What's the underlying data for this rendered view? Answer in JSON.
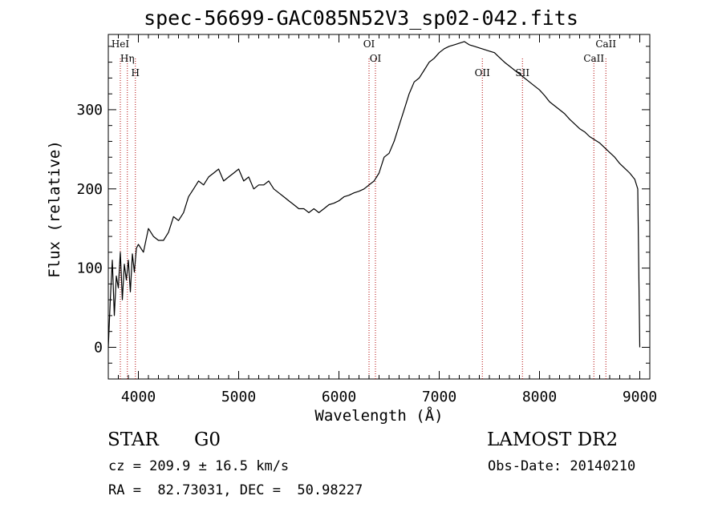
{
  "chart_data": {
    "type": "line",
    "title": "spec-56699-GAC085N52V3_sp02-042.fits",
    "xlabel": "Wavelength (Å)",
    "ylabel": "Flux (relative)",
    "xlim": [
      3700,
      9100
    ],
    "ylim": [
      -40,
      395
    ],
    "xticks": [
      4000,
      5000,
      6000,
      7000,
      8000,
      9000
    ],
    "yticks": [
      0,
      100,
      200,
      300
    ],
    "grid": false,
    "series": [
      {
        "x": [
          3700,
          3720,
          3740,
          3760,
          3780,
          3800,
          3820,
          3840,
          3860,
          3880,
          3900,
          3920,
          3940,
          3960,
          3980,
          4000,
          4050,
          4100,
          4150,
          4200,
          4250,
          4300,
          4350,
          4400,
          4450,
          4500,
          4550,
          4600,
          4650,
          4700,
          4750,
          4800,
          4850,
          4900,
          4950,
          5000,
          5050,
          5100,
          5150,
          5200,
          5250,
          5300,
          5350,
          5400,
          5450,
          5500,
          5550,
          5600,
          5650,
          5700,
          5750,
          5800,
          5850,
          5900,
          5950,
          6000,
          6050,
          6100,
          6150,
          6200,
          6250,
          6300,
          6350,
          6400,
          6450,
          6500,
          6550,
          6600,
          6650,
          6700,
          6750,
          6800,
          6850,
          6900,
          6950,
          7000,
          7050,
          7100,
          7150,
          7200,
          7250,
          7300,
          7350,
          7400,
          7450,
          7500,
          7550,
          7600,
          7650,
          7700,
          7750,
          7800,
          7850,
          7900,
          7950,
          8000,
          8050,
          8100,
          8150,
          8200,
          8250,
          8300,
          8350,
          8400,
          8450,
          8500,
          8550,
          8600,
          8650,
          8700,
          8750,
          8800,
          8850,
          8900,
          8950,
          8980,
          9000
        ],
        "y": [
          0,
          60,
          110,
          40,
          90,
          75,
          120,
          60,
          105,
          85,
          110,
          70,
          118,
          95,
          125,
          130,
          120,
          150,
          140,
          135,
          135,
          145,
          165,
          160,
          170,
          190,
          200,
          210,
          205,
          215,
          220,
          225,
          210,
          215,
          220,
          225,
          210,
          215,
          200,
          205,
          205,
          210,
          200,
          195,
          190,
          185,
          180,
          175,
          175,
          170,
          175,
          170,
          175,
          180,
          182,
          185,
          190,
          192,
          195,
          197,
          200,
          205,
          210,
          220,
          240,
          245,
          260,
          280,
          300,
          320,
          335,
          340,
          350,
          360,
          365,
          372,
          377,
          380,
          382,
          384,
          386,
          382,
          380,
          378,
          376,
          374,
          372,
          366,
          360,
          355,
          350,
          345,
          340,
          335,
          330,
          325,
          318,
          310,
          305,
          300,
          295,
          288,
          282,
          276,
          272,
          266,
          262,
          258,
          252,
          246,
          240,
          232,
          226,
          220,
          212,
          200,
          0
        ]
      }
    ],
    "lines": [
      {
        "label": "HeI",
        "x": 3820
      },
      {
        "label": "Hη",
        "x": 3890
      },
      {
        "label": "H",
        "x": 3970
      },
      {
        "label": "OI",
        "x": 6300
      },
      {
        "label": "OI",
        "x": 6364
      },
      {
        "label": "OII",
        "x": 7430
      },
      {
        "label": "SII",
        "x": 7830
      },
      {
        "label": "CaII",
        "x": 8542
      },
      {
        "label": "CaII",
        "x": 8662
      }
    ]
  },
  "info": {
    "obj_type": "STAR",
    "subclass": "G0",
    "survey": "LAMOST DR2",
    "cz": "cz = 209.9 ± 16.5 km/s",
    "obs_date": "Obs-Date: 20140210",
    "radec": "RA =  82.73031, DEC =  50.98227"
  },
  "colors": {
    "spectrum": "#000000",
    "line_marker": "#b00000"
  }
}
